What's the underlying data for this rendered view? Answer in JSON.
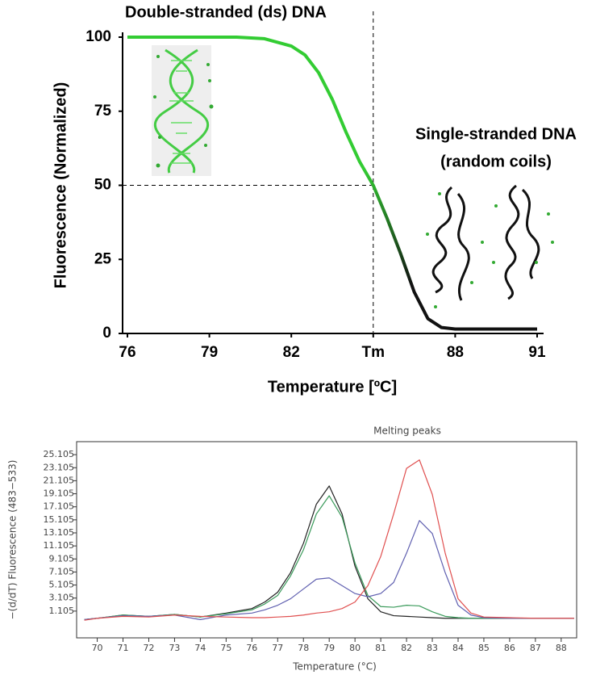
{
  "chart_data": [
    {
      "type": "line",
      "title": "Double-stranded (ds) DNA",
      "annotation": [
        "Single-stranded DNA",
        "(random coils)"
      ],
      "x_label": "Temperature  [ºC]",
      "y_label": "Fluorescence (Normalized)",
      "x": [
        76,
        78,
        80,
        81,
        82,
        82.5,
        83,
        83.5,
        84,
        84.5,
        85,
        85.5,
        86,
        86.5,
        87,
        87.5,
        88,
        89,
        90,
        91
      ],
      "values": [
        100,
        100,
        100,
        99.5,
        97,
        94,
        88,
        79,
        68,
        58,
        50,
        39,
        27,
        14,
        5,
        2,
        1.5,
        1.5,
        1.5,
        1.5
      ],
      "color": "#33cc33",
      "xlim": [
        76,
        91
      ],
      "ylim": [
        0,
        100
      ],
      "xticks": [
        76,
        79,
        82,
        {
          "value": 85,
          "label": "Tm"
        },
        88,
        91
      ],
      "yticks": [
        0,
        25,
        50,
        75,
        100
      ],
      "reference_lines": {
        "x": 85,
        "y": 50
      }
    },
    {
      "type": "line",
      "title": "Melting peaks",
      "x_label": "Temperature (°C)",
      "y_label": "−(d/dT) Fluorescence (483−533)",
      "x": [
        69.5,
        70,
        71,
        72,
        73,
        74,
        75,
        76,
        76.5,
        77,
        77.5,
        78,
        78.5,
        79,
        79.5,
        80,
        80.5,
        81,
        81.5,
        82,
        82.5,
        83,
        83.5,
        84,
        84.5,
        85,
        86,
        87,
        88,
        88.5
      ],
      "series": [
        {
          "color": "#222222",
          "values": [
            -0.2,
            0,
            0.5,
            0.3,
            0.6,
            0.2,
            0.8,
            1.5,
            2.5,
            4,
            7,
            11.5,
            17.5,
            20.3,
            16,
            8,
            3,
            1,
            0.4,
            0.3,
            0.2,
            0.1,
            0,
            0,
            0,
            0,
            0,
            0,
            0,
            0
          ]
        },
        {
          "color": "#3a9a5a",
          "values": [
            -0.2,
            0,
            0.5,
            0.3,
            0.6,
            0.2,
            0.7,
            1.3,
            2.2,
            3.5,
            6.5,
            10.5,
            16,
            18.8,
            15.5,
            8.5,
            3.5,
            1.8,
            1.7,
            2,
            1.9,
            1,
            0.3,
            0.1,
            0,
            0,
            0,
            0,
            0,
            0
          ]
        },
        {
          "color": "#6060b0",
          "values": [
            -0.2,
            0,
            0.4,
            0.3,
            0.5,
            -0.2,
            0.5,
            0.8,
            1.3,
            2,
            3,
            4.5,
            6,
            6.2,
            5,
            3.8,
            3.3,
            3.8,
            5.5,
            10,
            15,
            13,
            7,
            2,
            0.5,
            0.1,
            0,
            0,
            0,
            0
          ]
        },
        {
          "color": "#e05050",
          "values": [
            -0.3,
            0,
            0.3,
            0.2,
            0.5,
            0.3,
            0.2,
            0.1,
            0.1,
            0.2,
            0.3,
            0.5,
            0.8,
            1,
            1.5,
            2.5,
            5,
            9.5,
            16,
            23,
            24.3,
            19,
            10,
            3,
            0.8,
            0.2,
            0.1,
            0,
            0,
            0
          ]
        }
      ],
      "xlim": [
        69.2,
        88.6
      ],
      "ylim": [
        -3,
        27.1
      ],
      "xticks": [
        70,
        71,
        72,
        73,
        74,
        75,
        76,
        77,
        78,
        79,
        80,
        81,
        82,
        83,
        84,
        85,
        86,
        87,
        88
      ],
      "yticks": [
        1.105,
        3.105,
        5.105,
        7.105,
        9.105,
        11.105,
        13.105,
        15.105,
        17.105,
        19.105,
        21.105,
        23.105,
        25.105
      ]
    }
  ]
}
